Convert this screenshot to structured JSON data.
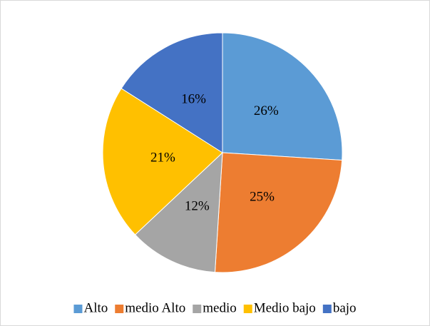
{
  "chart_data": {
    "type": "pie",
    "categories": [
      "Alto",
      "medio Alto",
      "medio",
      "Medio bajo",
      "bajo"
    ],
    "values": [
      26,
      25,
      12,
      21,
      16
    ],
    "value_labels": [
      "26%",
      "25%",
      "12%",
      "21%",
      "16%"
    ],
    "colors": [
      "#5b9bd5",
      "#ed7d31",
      "#a5a5a5",
      "#ffc000",
      "#4472c4"
    ],
    "legend": "bottom"
  }
}
